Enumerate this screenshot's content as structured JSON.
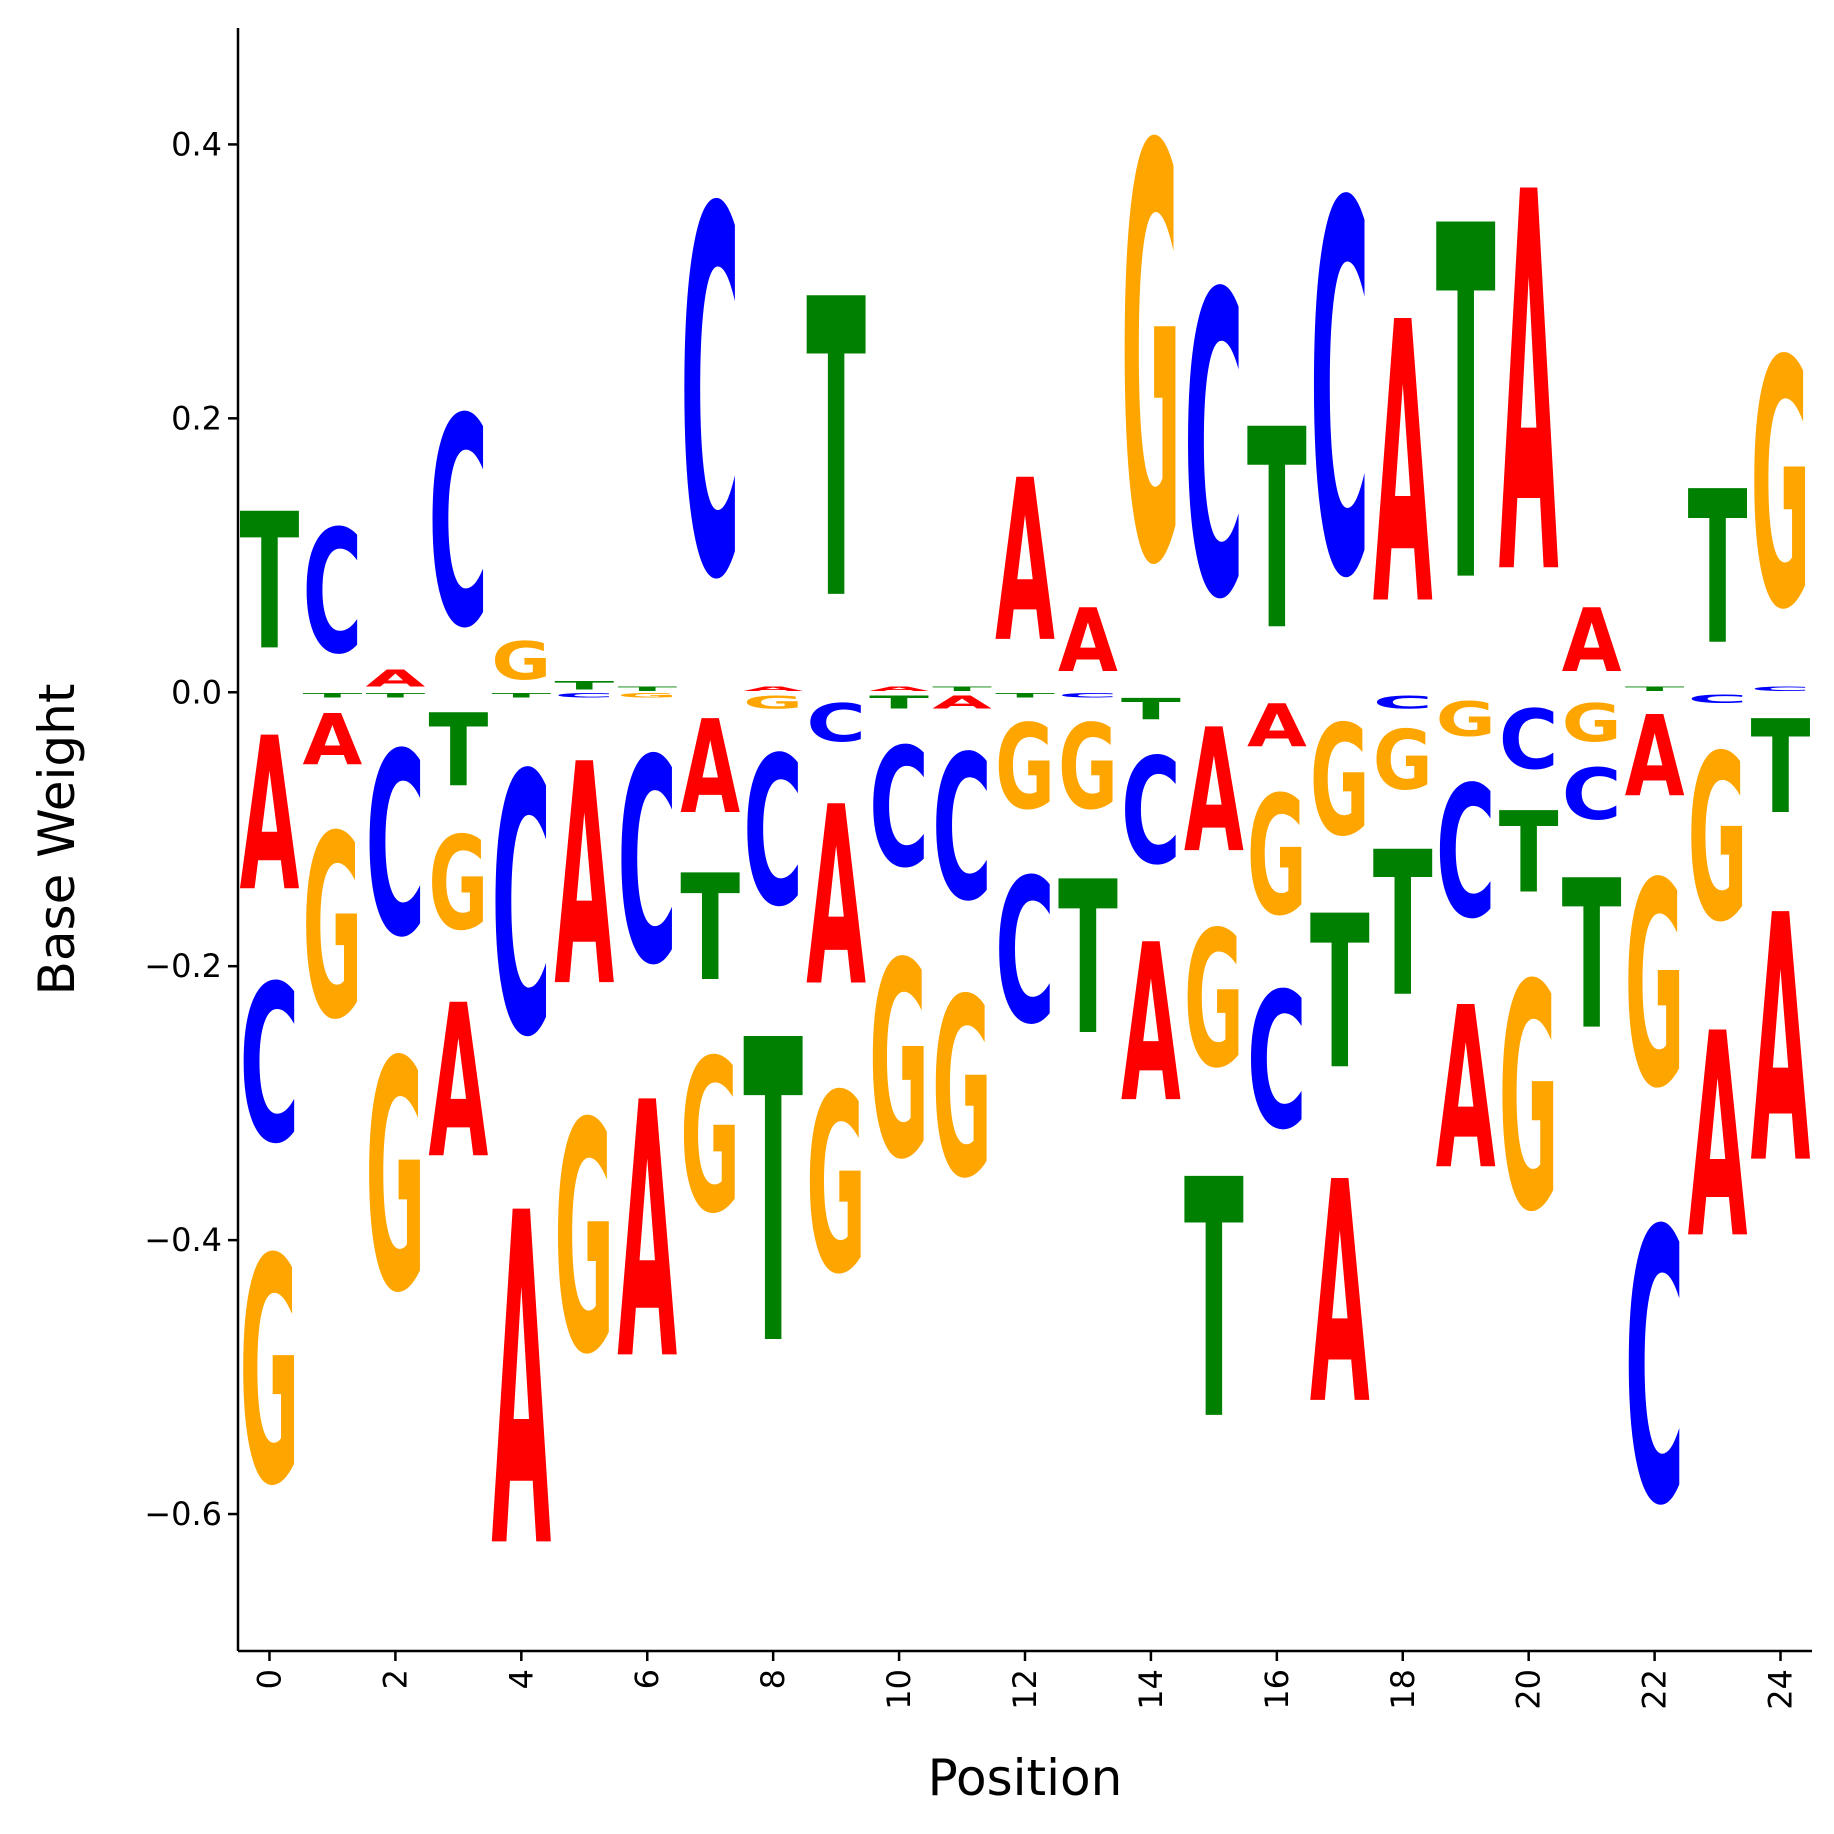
{
  "chart_data": {
    "type": "sequence-logo",
    "xlabel": "Position",
    "ylabel": "Base Weight",
    "xlim": [
      -0.5,
      24.5
    ],
    "ylim": [
      -0.7,
      0.485
    ],
    "x_ticks": [
      0,
      2,
      4,
      6,
      8,
      10,
      12,
      14,
      16,
      18,
      20,
      22,
      24
    ],
    "y_ticks": [
      {
        "value": 0.4,
        "label": "0.4"
      },
      {
        "value": 0.2,
        "label": "0.2"
      },
      {
        "value": 0.0,
        "label": "0.0"
      },
      {
        "value": -0.2,
        "label": "−0.2"
      },
      {
        "value": -0.4,
        "label": "−0.4"
      },
      {
        "value": -0.6,
        "label": "−0.6"
      }
    ],
    "colors": {
      "A": "#ff0000",
      "C": "#0000ff",
      "G": "#ffa500",
      "T": "#008000"
    },
    "positions": [
      {
        "pos": 0,
        "A": -0.18,
        "C": -0.185,
        "G": -0.265,
        "T": 0.16
      },
      {
        "pos": 1,
        "A": -0.06,
        "C": 0.145,
        "G": -0.215,
        "T": -0.005
      },
      {
        "pos": 2,
        "A": 0.02,
        "C": -0.215,
        "G": -0.27,
        "T": -0.005
      },
      {
        "pos": 3,
        "A": -0.18,
        "C": 0.245,
        "G": -0.11,
        "T": -0.085
      },
      {
        "pos": 4,
        "A": -0.39,
        "C": -0.305,
        "G": 0.045,
        "T": -0.005
      },
      {
        "pos": 5,
        "A": -0.26,
        "C": -0.005,
        "G": -0.27,
        "T": 0.01
      },
      {
        "pos": 6,
        "A": -0.3,
        "C": -0.24,
        "G": -0.005,
        "T": 0.005
      },
      {
        "pos": 7,
        "A": -0.11,
        "C": 0.43,
        "G": -0.18,
        "T": -0.125
      },
      {
        "pos": 8,
        "A": 0.005,
        "C": -0.175,
        "G": -0.015,
        "T": -0.355
      },
      {
        "pos": 9,
        "A": -0.21,
        "C": -0.045,
        "G": -0.21,
        "T": 0.35
      },
      {
        "pos": 10,
        "A": 0.005,
        "C": -0.14,
        "G": -0.23,
        "T": -0.015
      },
      {
        "pos": 11,
        "A": -0.015,
        "C": -0.17,
        "G": -0.21,
        "T": 0.005
      },
      {
        "pos": 12,
        "A": 0.19,
        "C": -0.17,
        "G": -0.1,
        "T": -0.005
      },
      {
        "pos": 13,
        "A": 0.075,
        "C": -0.005,
        "G": -0.1,
        "T": -0.18
      },
      {
        "pos": 14,
        "A": -0.185,
        "C": -0.125,
        "G": 0.485,
        "T": -0.025
      },
      {
        "pos": 15,
        "A": -0.145,
        "C": 0.355,
        "G": -0.16,
        "T": -0.28
      },
      {
        "pos": 16,
        "A": -0.05,
        "C": -0.16,
        "G": -0.14,
        "T": 0.235
      },
      {
        "pos": 17,
        "A": -0.26,
        "C": 0.435,
        "G": -0.13,
        "T": -0.18
      },
      {
        "pos": 18,
        "A": 0.33,
        "C": -0.015,
        "G": -0.07,
        "T": -0.17
      },
      {
        "pos": 19,
        "A": -0.19,
        "C": -0.155,
        "G": -0.04,
        "T": 0.415
      },
      {
        "pos": 20,
        "A": 0.445,
        "C": -0.07,
        "G": -0.265,
        "T": -0.095
      },
      {
        "pos": 21,
        "A": 0.075,
        "C": -0.06,
        "G": -0.045,
        "T": -0.175
      },
      {
        "pos": 22,
        "A": -0.095,
        "C": -0.32,
        "G": -0.24,
        "T": 0.005
      },
      {
        "pos": 23,
        "A": -0.24,
        "C": -0.01,
        "G": -0.195,
        "T": 0.18
      },
      {
        "pos": 24,
        "A": -0.29,
        "C": 0.005,
        "G": 0.29,
        "T": -0.11
      }
    ]
  }
}
